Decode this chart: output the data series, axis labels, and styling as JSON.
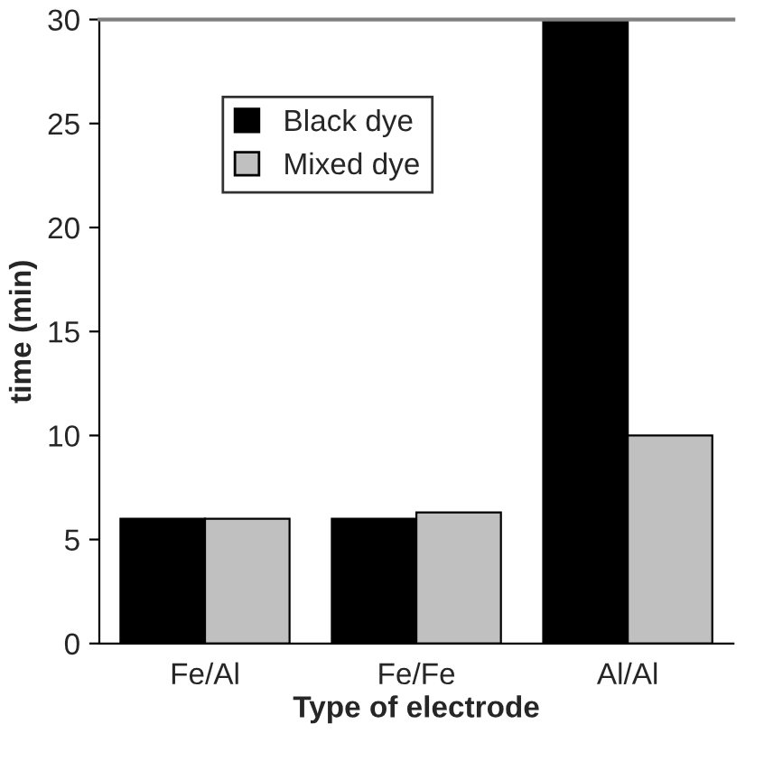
{
  "chart_data": {
    "type": "bar",
    "xlabel": "Type of electrode",
    "ylabel": "time (min)",
    "categories": [
      "Fe/Al",
      "Fe/Fe",
      "Al/Al"
    ],
    "series": [
      {
        "name": "Black dye",
        "color": "#000000",
        "values": [
          6,
          6,
          30
        ]
      },
      {
        "name": "Mixed dye",
        "color": "#c0c0c0",
        "values": [
          6,
          6.3,
          10
        ]
      }
    ],
    "ylim": [
      0,
      30
    ],
    "yticks": [
      0,
      5,
      10,
      15,
      20,
      25,
      30
    ],
    "grid": false,
    "legend": "top"
  }
}
